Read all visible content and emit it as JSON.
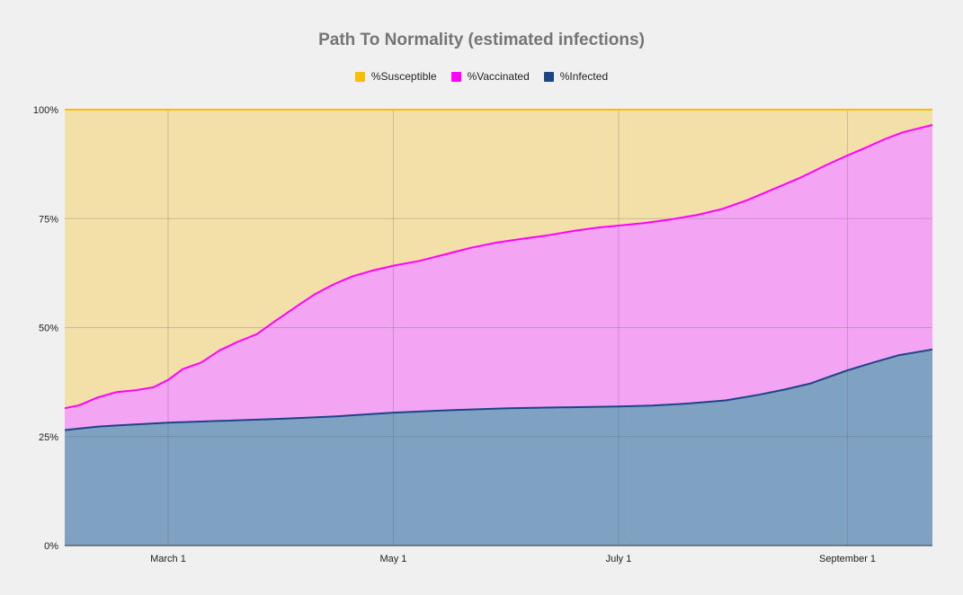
{
  "chart_data": {
    "type": "area",
    "stacking": "cumulative",
    "title": "Path To Normality (estimated infections)",
    "legend_position": "top",
    "x_axis": {
      "type": "date",
      "range": [
        "2021-02-01",
        "2021-09-24"
      ],
      "ticks": [
        {
          "date": "2021-03-01",
          "label": "March 1"
        },
        {
          "date": "2021-05-01",
          "label": "May 1"
        },
        {
          "date": "2021-07-01",
          "label": "July 1"
        },
        {
          "date": "2021-09-01",
          "label": "September 1"
        }
      ]
    },
    "y_axis": {
      "range": [
        0,
        100
      ],
      "unit": "%",
      "ticks": [
        {
          "value": 0,
          "label": "0%"
        },
        {
          "value": 25,
          "label": "25%"
        },
        {
          "value": 50,
          "label": "50%"
        },
        {
          "value": 75,
          "label": "75%"
        },
        {
          "value": 100,
          "label": "100%"
        }
      ]
    },
    "grid": true,
    "series": [
      {
        "name": "%Susceptible",
        "color": "#fbbc04",
        "fill": "#f3e0a9",
        "values": [
          [
            "2021-02-01",
            100
          ],
          [
            "2021-09-24",
            100
          ]
        ]
      },
      {
        "name": "%Vaccinated",
        "color": "#ff00ff",
        "fill": "#f3a5f3",
        "values": [
          [
            "2021-02-01",
            31.5
          ],
          [
            "2021-02-05",
            32.2
          ],
          [
            "2021-02-10",
            34.0
          ],
          [
            "2021-02-15",
            35.2
          ],
          [
            "2021-02-20",
            35.6
          ],
          [
            "2021-02-25",
            36.3
          ],
          [
            "2021-03-01",
            38.0
          ],
          [
            "2021-03-05",
            40.5
          ],
          [
            "2021-03-10",
            42.0
          ],
          [
            "2021-03-15",
            44.8
          ],
          [
            "2021-03-20",
            46.8
          ],
          [
            "2021-03-25",
            48.5
          ],
          [
            "2021-03-30",
            51.5
          ],
          [
            "2021-04-05",
            55.0
          ],
          [
            "2021-04-10",
            57.8
          ],
          [
            "2021-04-15",
            60.0
          ],
          [
            "2021-04-20",
            61.8
          ],
          [
            "2021-04-25",
            63.0
          ],
          [
            "2021-05-01",
            64.2
          ],
          [
            "2021-05-08",
            65.3
          ],
          [
            "2021-05-15",
            66.8
          ],
          [
            "2021-05-22",
            68.3
          ],
          [
            "2021-05-29",
            69.5
          ],
          [
            "2021-06-05",
            70.4
          ],
          [
            "2021-06-12",
            71.2
          ],
          [
            "2021-06-19",
            72.2
          ],
          [
            "2021-06-26",
            73.0
          ],
          [
            "2021-07-01",
            73.4
          ],
          [
            "2021-07-08",
            74.0
          ],
          [
            "2021-07-15",
            74.8
          ],
          [
            "2021-07-22",
            75.8
          ],
          [
            "2021-07-29",
            77.2
          ],
          [
            "2021-08-05",
            79.3
          ],
          [
            "2021-08-12",
            81.8
          ],
          [
            "2021-08-19",
            84.3
          ],
          [
            "2021-08-26",
            87.2
          ],
          [
            "2021-09-01",
            89.5
          ],
          [
            "2021-09-06",
            91.3
          ],
          [
            "2021-09-11",
            93.2
          ],
          [
            "2021-09-16",
            94.8
          ],
          [
            "2021-09-24",
            96.5
          ]
        ]
      },
      {
        "name": "%Infected",
        "color": "#1c4587",
        "fill": "#7fa2c3",
        "values": [
          [
            "2021-02-01",
            26.5
          ],
          [
            "2021-02-10",
            27.3
          ],
          [
            "2021-02-20",
            27.8
          ],
          [
            "2021-03-01",
            28.2
          ],
          [
            "2021-03-15",
            28.6
          ],
          [
            "2021-04-01",
            29.1
          ],
          [
            "2021-04-15",
            29.6
          ],
          [
            "2021-05-01",
            30.5
          ],
          [
            "2021-05-15",
            31.0
          ],
          [
            "2021-06-01",
            31.5
          ],
          [
            "2021-06-15",
            31.7
          ],
          [
            "2021-07-01",
            31.9
          ],
          [
            "2021-07-10",
            32.1
          ],
          [
            "2021-07-20",
            32.6
          ],
          [
            "2021-07-30",
            33.3
          ],
          [
            "2021-08-08",
            34.6
          ],
          [
            "2021-08-15",
            35.8
          ],
          [
            "2021-08-22",
            37.2
          ],
          [
            "2021-09-01",
            40.2
          ],
          [
            "2021-09-08",
            42.0
          ],
          [
            "2021-09-15",
            43.7
          ],
          [
            "2021-09-24",
            45.0
          ]
        ]
      }
    ]
  }
}
